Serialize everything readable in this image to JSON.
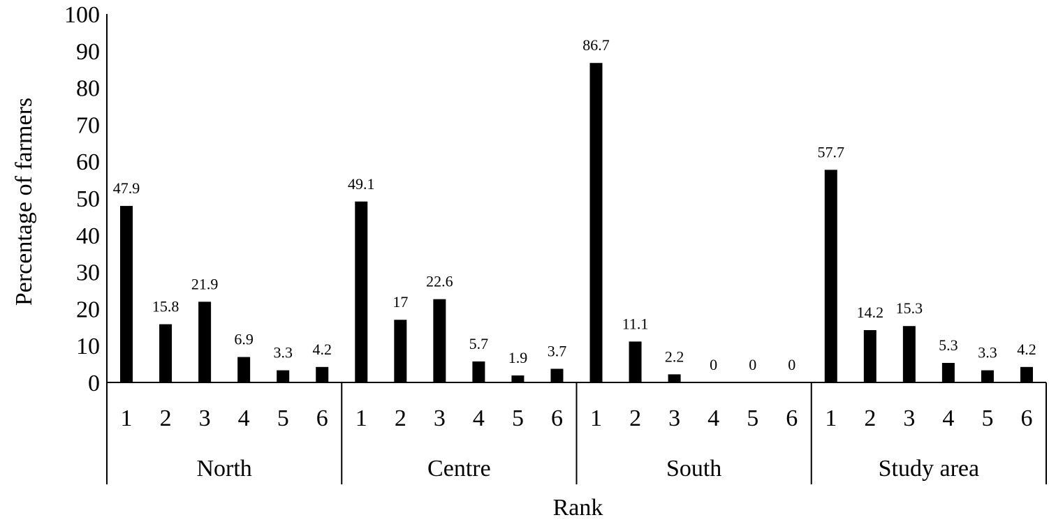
{
  "chart_data": {
    "type": "bar",
    "title": "",
    "xlabel": "Rank",
    "ylabel": "Percentage of farmers",
    "ylim": [
      0,
      100
    ],
    "yticks": [
      0,
      10,
      20,
      30,
      40,
      50,
      60,
      70,
      80,
      90,
      100
    ],
    "grid": false,
    "legend": "none",
    "bar_color": "#000000",
    "groups": [
      {
        "name": "North",
        "categories": [
          "1",
          "2",
          "3",
          "4",
          "5",
          "6"
        ],
        "values": [
          47.9,
          15.8,
          21.9,
          6.9,
          3.3,
          4.2
        ],
        "labels": [
          "47.9",
          "15.8",
          "21.9",
          "6.9",
          "3.3",
          "4.2"
        ]
      },
      {
        "name": "Centre",
        "categories": [
          "1",
          "2",
          "3",
          "4",
          "5",
          "6"
        ],
        "values": [
          49.1,
          17,
          22.6,
          5.7,
          1.9,
          3.7
        ],
        "labels": [
          "49.1",
          "17",
          "22.6",
          "5.7",
          "1.9",
          "3.7"
        ]
      },
      {
        "name": "South",
        "categories": [
          "1",
          "2",
          "3",
          "4",
          "5",
          "6"
        ],
        "values": [
          86.7,
          11.1,
          2.2,
          0,
          0,
          0
        ],
        "labels": [
          "86.7",
          "11.1",
          "2.2",
          "0",
          "0",
          "0"
        ]
      },
      {
        "name": "Study area",
        "categories": [
          "1",
          "2",
          "3",
          "4",
          "5",
          "6"
        ],
        "values": [
          57.7,
          14.2,
          15.3,
          5.3,
          3.3,
          4.2
        ],
        "labels": [
          "57.7",
          "14.2",
          "15.3",
          "5.3",
          "3.3",
          "4.2"
        ]
      }
    ]
  }
}
